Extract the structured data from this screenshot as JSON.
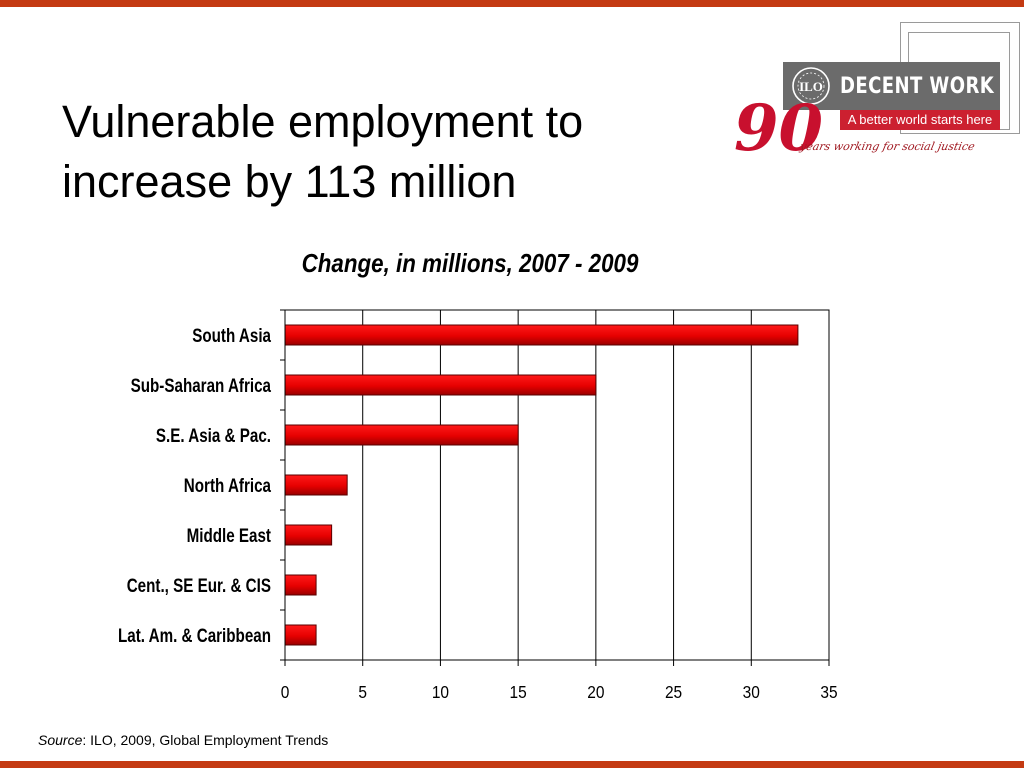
{
  "colors": {
    "accent": "#c43a12",
    "bar_fill": "#e60000",
    "bar_stroke": "#5a0000"
  },
  "slide": {
    "title_line1": "Vulnerable employment to",
    "title_line2": "increase by 113 million"
  },
  "logo": {
    "brand_text": "DECENT WORK",
    "tagline": "A better world starts here",
    "ninety": "90",
    "years_text": "years working for social justice",
    "emblem_text": "ILO"
  },
  "source": {
    "label": "Source",
    "text": ": ILO, 2009, Global Employment Trends"
  },
  "chart_data": {
    "type": "bar",
    "orientation": "horizontal",
    "title": "Change, in millions, 2007 - 2009",
    "categories": [
      "South Asia",
      "Sub-Saharan Africa",
      "S.E. Asia & Pac.",
      "North Africa",
      "Middle East",
      "Cent., SE Eur. & CIS",
      "Lat. Am. & Caribbean"
    ],
    "values": [
      33,
      20,
      15,
      4,
      3,
      2,
      2
    ],
    "xlim": [
      0,
      35
    ],
    "xticks": [
      "0",
      "5",
      "10",
      "15",
      "20",
      "25",
      "30",
      "35"
    ],
    "xlabel": "",
    "ylabel": "",
    "grid": "vertical",
    "legend": "none"
  }
}
